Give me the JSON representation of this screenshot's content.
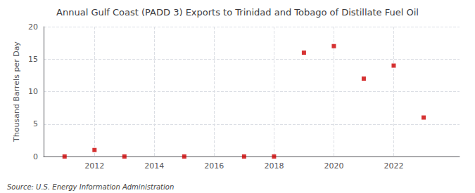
{
  "chart_data": {
    "type": "scatter",
    "title": "Annual Gulf Coast (PADD 3) Exports to Trinidad and Tobago of Distillate Fuel Oil",
    "ylabel": "Thousand Barrels per Day",
    "annotation": "Source: U.S. Energy Information Administration",
    "x": [
      2011,
      2012,
      2013,
      2015,
      2017,
      2018,
      2019,
      2020,
      2021,
      2022,
      2023
    ],
    "values": [
      0,
      1,
      0,
      0,
      0,
      0,
      16,
      17,
      12,
      14,
      6
    ],
    "color": "#cc0000",
    "marker": "square",
    "xlim": [
      2010.3,
      2024.2
    ],
    "xticks": [
      2012,
      2014,
      2016,
      2018,
      2020,
      2022
    ],
    "ylim": [
      0,
      20
    ],
    "yticks": [
      0,
      5,
      10,
      15,
      20
    ],
    "grid": true
  }
}
